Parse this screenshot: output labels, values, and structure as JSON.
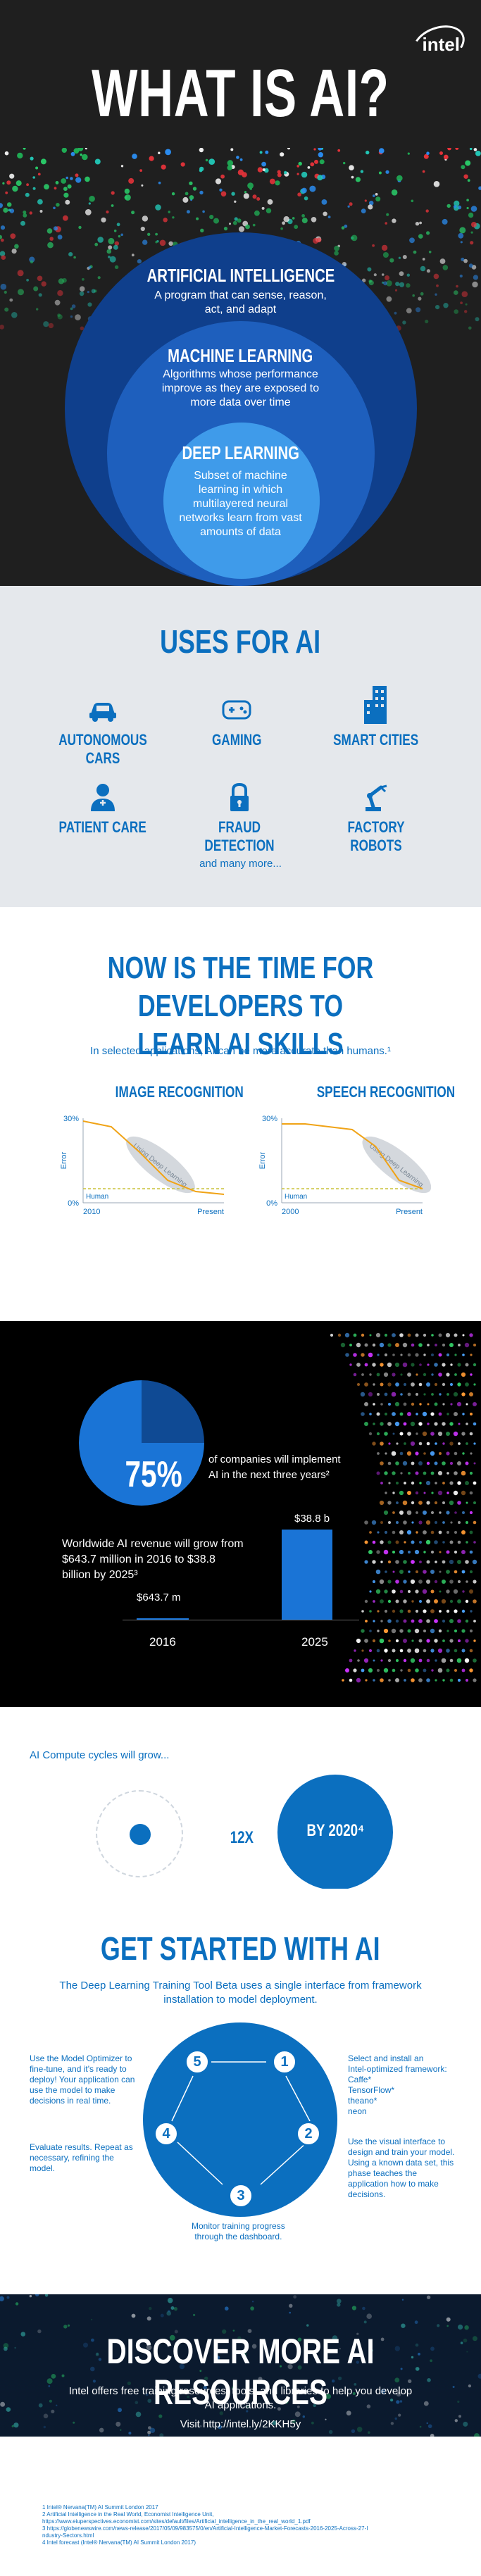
{
  "brand": {
    "logo_text": "intel"
  },
  "hero": {
    "title": "WHAT IS AI?",
    "circles": [
      {
        "title": "ARTIFICIAL INTELLIGENCE",
        "text": [
          "A program that can sense, reason,",
          "act, and adapt"
        ]
      },
      {
        "title": "MACHINE LEARNING",
        "text": [
          "Algorithms whose performance",
          "improve as they are exposed to",
          "more data over time"
        ]
      },
      {
        "title": "DEEP LEARNING",
        "text": [
          "Subset of machine",
          "learning in which",
          "multilayered neural",
          "networks learn from vast",
          "amounts of data"
        ]
      }
    ]
  },
  "uses": {
    "title": "USES FOR AI",
    "items": [
      {
        "label": "AUTONOMOUS CARS",
        "icon": "car-icon"
      },
      {
        "label": "GAMING",
        "icon": "gamepad-icon"
      },
      {
        "label": "SMART CITIES",
        "icon": "buildings-icon"
      },
      {
        "label": "PATIENT CARE",
        "icon": "patient-icon"
      },
      {
        "label": "FRAUD DETECTION",
        "icon": "lock-icon"
      },
      {
        "label": "FACTORY ROBOTS",
        "icon": "robot-arm-icon"
      }
    ],
    "more": "and many more..."
  },
  "dev": {
    "title_line1": "NOW IS THE TIME FOR DEVELOPERS TO",
    "title_line2": "LEARN AI SKILLS",
    "subtitle": "In selected applications, AI can be more accurate than humans.¹"
  },
  "chart_data": [
    {
      "type": "line",
      "title": "IMAGE RECOGNITION",
      "ylabel": "Error",
      "yticks": [
        "30%",
        "0%"
      ],
      "xticks": [
        "2010",
        "Present"
      ],
      "ylim": [
        0,
        30
      ],
      "annotation": "Using Deep Learning",
      "series": [
        {
          "name": "Human",
          "style": "dashed",
          "values": [
            5,
            5
          ]
        },
        {
          "values": [
            29,
            27,
            18,
            8,
            4,
            3
          ]
        }
      ]
    },
    {
      "type": "line",
      "title": "SPEECH RECOGNITION",
      "ylabel": "Error",
      "yticks": [
        "30%",
        "0%"
      ],
      "xticks": [
        "2000",
        "Present"
      ],
      "ylim": [
        0,
        30
      ],
      "annotation": "Using Deep Learning",
      "series": [
        {
          "name": "Human",
          "style": "dashed",
          "values": [
            5,
            5
          ]
        },
        {
          "values": [
            28,
            28,
            27,
            26,
            20,
            8,
            5
          ]
        }
      ]
    },
    {
      "type": "pie",
      "values": [
        75,
        25
      ],
      "label": "75%"
    },
    {
      "type": "bar",
      "categories": [
        "2016",
        "2025"
      ],
      "values": [
        643.7,
        38800
      ],
      "data_labels": [
        "$643.7 m",
        "$38.8 b"
      ]
    }
  ],
  "stats": {
    "pie_label": "75%",
    "pie_text": [
      "of companies will implement",
      "AI in the next three years²"
    ],
    "revenue_text": [
      "Worldwide AI revenue will grow from",
      "$643.7 million in 2016 to $38.8",
      "billion by 2025³"
    ],
    "bar_small_label": "$643.7 m",
    "bar_big_label": "$38.8 b",
    "year_small": "2016",
    "year_big": "2025"
  },
  "compute": {
    "title": "AI Compute cycles will grow...",
    "multiplier": "12X",
    "by": "BY 2020⁴"
  },
  "start": {
    "title": "GET STARTED WITH AI",
    "subtitle": [
      "The Deep Learning Training Tool Beta uses a single interface from framework",
      "installation to model deployment."
    ],
    "steps": [
      {
        "n": "1",
        "text": [
          "Select and install an",
          "Intel-optimized framework:",
          "Caffe*",
          "TensorFlow*",
          "theano*",
          "neon"
        ]
      },
      {
        "n": "2",
        "text": [
          "Use the visual interface to",
          "design and train your model.",
          "Using a known data set, this",
          "phase teaches the",
          "application how to make",
          "decisions."
        ]
      },
      {
        "n": "3",
        "text": [
          "Monitor training progress",
          "through the dashboard."
        ]
      },
      {
        "n": "4",
        "text": [
          "Evaluate results. Repeat as",
          "necessary, refining the",
          "model."
        ]
      },
      {
        "n": "5",
        "text": [
          "Use the Model Optimizer to",
          "fine-tune, and it's ready to",
          "deploy! Your application can",
          "use the model to make",
          "decisions in real time."
        ]
      }
    ]
  },
  "discover": {
    "title": "DISCOVER MORE AI RESOURCES",
    "text": [
      "Intel offers free training resources, tools, and libraries to help you develop",
      "AI applications."
    ],
    "url": "Visit http://intel.ly/2KKH5y"
  },
  "footnotes": [
    "1 Intel® Nervana(TM) AI Summit London 2017",
    "2 Artificial Intelligence in the Real World, Economist Intelligence Unit,",
    "https://www.eiuperspectives.economist.com/sites/default/files/Artificial_intelligence_in_the_real_world_1.pdf",
    "3 https://globenewswire.com/news-release/2017/05/09/983575/0/en/Artificial-Intelligence-Market-Forecasts-2016-2025-Across-27-I",
    "ndustry-Sectors.html",
    "4 Intel forecast (Intel® Nervana(TM) AI Summit London 2017)"
  ]
}
